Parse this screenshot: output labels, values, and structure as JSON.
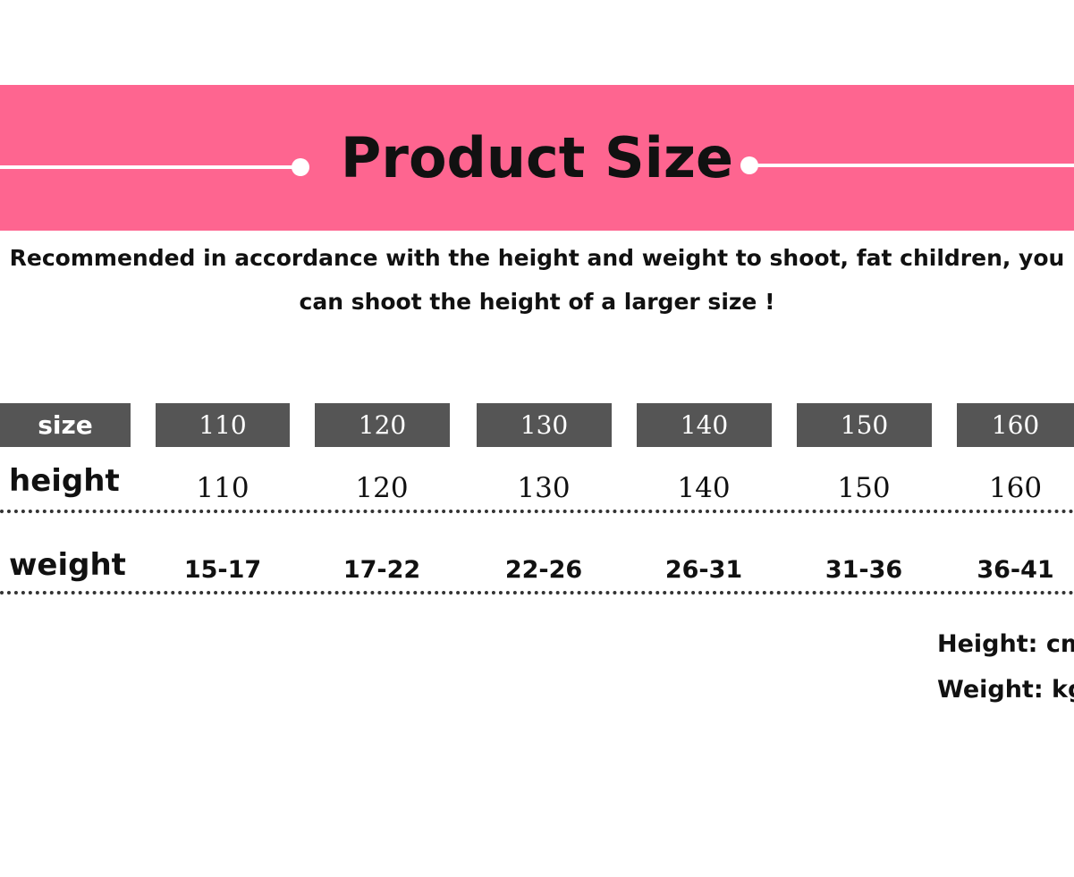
{
  "header": {
    "title": "Product Size"
  },
  "note": [
    "Recommended in accordance with the height and weight to shoot, fat children, you",
    "can shoot the height of a larger size !"
  ],
  "table": {
    "header": [
      "size",
      "110",
      "120",
      "130",
      "140",
      "150",
      "160"
    ],
    "rows": [
      [
        "height",
        "110",
        "120",
        "130",
        "140",
        "150",
        "160"
      ],
      [
        "weight",
        "15-17",
        "17-22",
        "22-26",
        "26-31",
        "31-36",
        "36-41"
      ]
    ]
  },
  "units": [
    "Height: cm",
    "Weight: kg"
  ]
}
